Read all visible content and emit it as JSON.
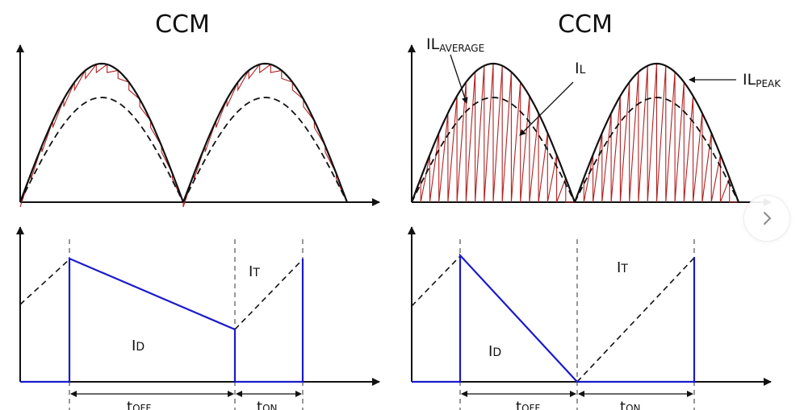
{
  "left_panel": {
    "title": "CCM",
    "labels": {
      "it": [
        "I",
        "T"
      ],
      "id": [
        "I",
        "D"
      ],
      "toff": [
        "t",
        "OFF"
      ],
      "ton": [
        "t",
        "ON"
      ]
    }
  },
  "right_panel": {
    "title": "CCM",
    "labels": {
      "il_average": [
        "IL",
        "AVERAGE"
      ],
      "il": [
        "I",
        "L"
      ],
      "il_peak": [
        "IL",
        "PEAK"
      ],
      "it": [
        "I",
        "T"
      ],
      "id": [
        "I",
        "D"
      ],
      "toff": [
        "t",
        "OFF"
      ],
      "ton": [
        "t",
        "ON"
      ]
    }
  },
  "colors": {
    "current_ripple": "#b22222",
    "diode_current": "#1a1acc",
    "axis": "#111111"
  },
  "icons": {
    "next": "chevron-right-icon"
  }
}
